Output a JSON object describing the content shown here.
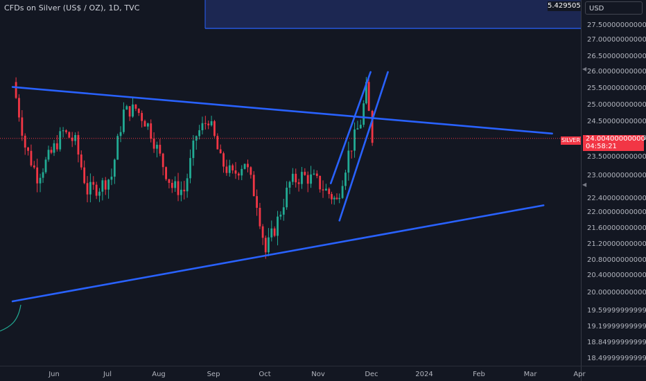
{
  "header": {
    "title": "CFDs on Silver (US$ / OZ), 1D, TVC"
  },
  "price_axis": {
    "currency": "USD",
    "labels": [
      "27.50000000000000",
      "27.00000000000000",
      "26.50000000000000",
      "26.00000000000000",
      "25.50000000000000",
      "25.00000000000000",
      "24.50000000000000",
      "24.00000000000000",
      "23.50000000000000",
      "23.00000000000000",
      "22.40000000000000",
      "22.00000000000000",
      "21.60000000000001",
      "21.20000000000001",
      "20.80000000000001",
      "20.40000000000000",
      "20.00000000000000",
      "19.59999999999999",
      "19.19999999999999",
      "18.84999999999998",
      "18.49999999999998"
    ]
  },
  "time_axis": {
    "labels": [
      "Jun",
      "Jul",
      "Aug",
      "Sep",
      "Oct",
      "Nov",
      "Dec",
      "2024",
      "Feb",
      "Mar",
      "Apr"
    ]
  },
  "overlays": {
    "box_value": "5.42950581",
    "symbol_label": "SILVER",
    "last_price": "24.00400000000000",
    "countdown": "04:58:21"
  },
  "colors": {
    "up": "#22ab94",
    "down": "#f23645",
    "trendline": "#2962ff",
    "background": "#131722"
  },
  "chart_data": {
    "type": "candlestick",
    "title": "CFDs on Silver (US$ / OZ), 1D, TVC",
    "x_range": [
      "2023-05-08",
      "2024-04"
    ],
    "y_range": [
      18.5,
      27.8
    ],
    "close_series_approx": [
      {
        "date": "2023-05-10",
        "close": 25.7
      },
      {
        "date": "2023-05-17",
        "close": 23.8
      },
      {
        "date": "2023-05-24",
        "close": 23.0
      },
      {
        "date": "2023-06-01",
        "close": 23.6
      },
      {
        "date": "2023-06-08",
        "close": 24.2
      },
      {
        "date": "2023-06-15",
        "close": 23.9
      },
      {
        "date": "2023-06-22",
        "close": 22.6
      },
      {
        "date": "2023-06-29",
        "close": 22.7
      },
      {
        "date": "2023-07-06",
        "close": 23.0
      },
      {
        "date": "2023-07-13",
        "close": 24.8
      },
      {
        "date": "2023-07-20",
        "close": 24.9
      },
      {
        "date": "2023-07-27",
        "close": 24.4
      },
      {
        "date": "2023-08-03",
        "close": 23.5
      },
      {
        "date": "2023-08-10",
        "close": 22.7
      },
      {
        "date": "2023-08-17",
        "close": 22.6
      },
      {
        "date": "2023-08-24",
        "close": 24.1
      },
      {
        "date": "2023-08-31",
        "close": 24.6
      },
      {
        "date": "2023-09-07",
        "close": 23.4
      },
      {
        "date": "2023-09-14",
        "close": 23.0
      },
      {
        "date": "2023-09-21",
        "close": 23.4
      },
      {
        "date": "2023-09-28",
        "close": 22.3
      },
      {
        "date": "2023-10-03",
        "close": 21.0
      },
      {
        "date": "2023-10-10",
        "close": 21.8
      },
      {
        "date": "2023-10-17",
        "close": 22.8
      },
      {
        "date": "2023-10-24",
        "close": 23.0
      },
      {
        "date": "2023-10-31",
        "close": 22.9
      },
      {
        "date": "2023-11-07",
        "close": 22.6
      },
      {
        "date": "2023-11-13",
        "close": 22.3
      },
      {
        "date": "2023-11-20",
        "close": 23.6
      },
      {
        "date": "2023-11-27",
        "close": 24.5
      },
      {
        "date": "2023-11-30",
        "close": 25.5
      },
      {
        "date": "2023-12-04",
        "close": 24.0
      }
    ],
    "trendlines": [
      {
        "name": "descending resistance",
        "start": {
          "date": "2023-05-08",
          "price": 25.55
        },
        "end": {
          "date": "2024-03-15",
          "price": 24.15
        }
      },
      {
        "name": "ascending support",
        "start": {
          "date": "2023-05-08",
          "price": 19.8
        },
        "end": {
          "date": "2024-03-10",
          "price": 22.2
        }
      },
      {
        "name": "channel upper",
        "start": {
          "date": "2023-11-08",
          "price": 22.8
        },
        "end": {
          "date": "2023-12-01",
          "price": 26.0
        }
      },
      {
        "name": "channel lower",
        "start": {
          "date": "2023-11-13",
          "price": 21.8
        },
        "end": {
          "date": "2023-12-11",
          "price": 26.0
        }
      }
    ],
    "last_price": 24.004
  }
}
